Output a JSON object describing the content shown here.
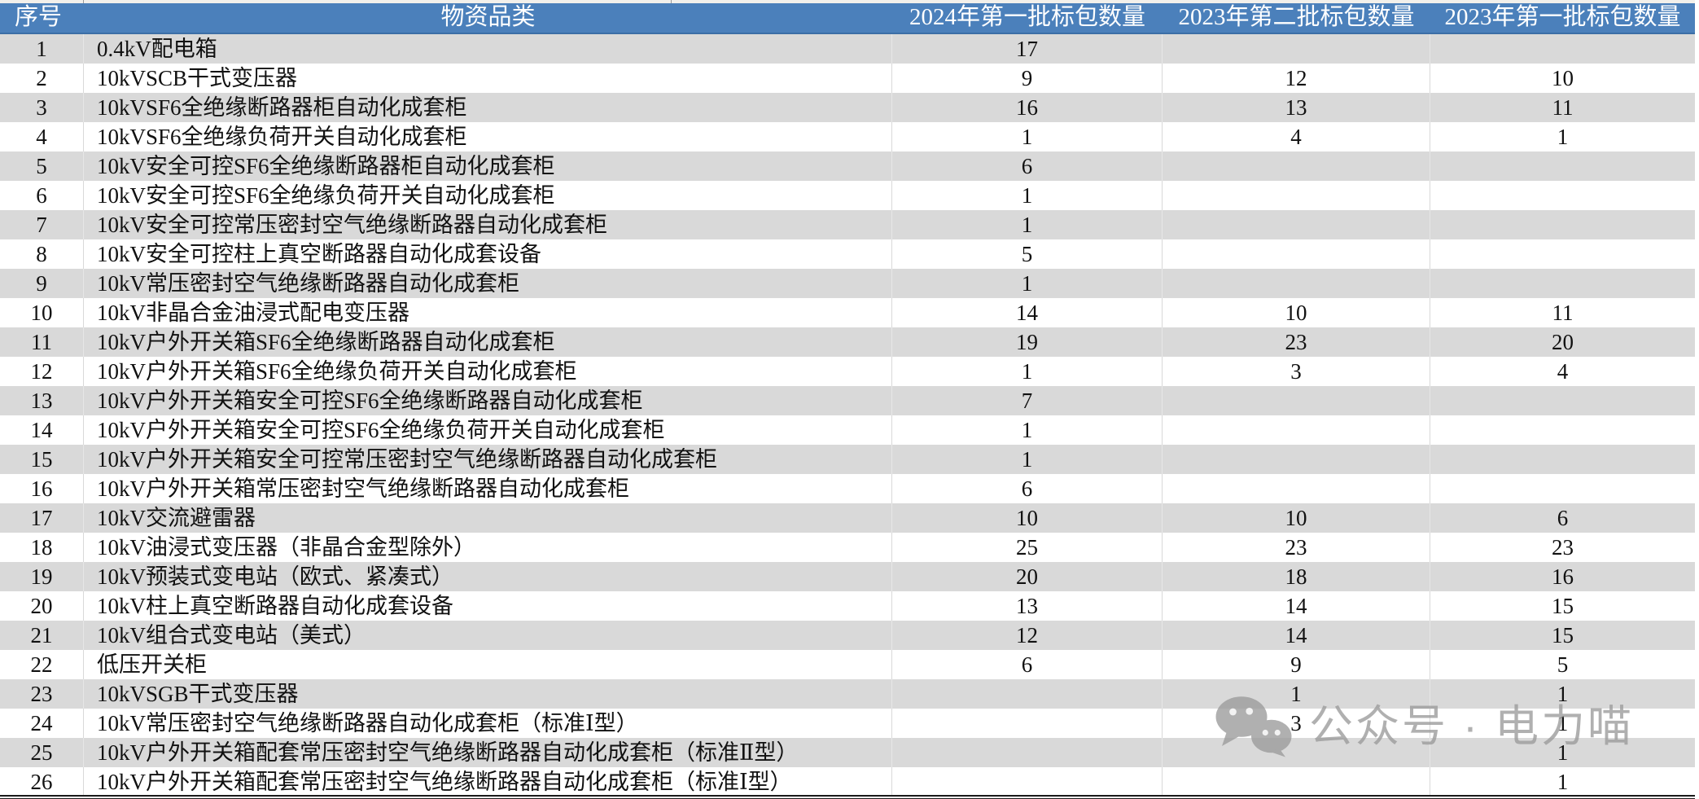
{
  "table": {
    "columns": [
      "序号",
      "物资品类",
      "2024年第一批标包数量",
      "2023年第二批标包数量",
      "2023年第一批标包数量"
    ],
    "rows": [
      [
        "1",
        "0.4kV配电箱",
        "17",
        "",
        ""
      ],
      [
        "2",
        "10kVSCB干式变压器",
        "9",
        "12",
        "10"
      ],
      [
        "3",
        "10kVSF6全绝缘断路器柜自动化成套柜",
        "16",
        "13",
        "11"
      ],
      [
        "4",
        "10kVSF6全绝缘负荷开关自动化成套柜",
        "1",
        "4",
        "1"
      ],
      [
        "5",
        "10kV安全可控SF6全绝缘断路器柜自动化成套柜",
        "6",
        "",
        ""
      ],
      [
        "6",
        "10kV安全可控SF6全绝缘负荷开关自动化成套柜",
        "1",
        "",
        ""
      ],
      [
        "7",
        "10kV安全可控常压密封空气绝缘断路器自动化成套柜",
        "1",
        "",
        ""
      ],
      [
        "8",
        "10kV安全可控柱上真空断路器自动化成套设备",
        "5",
        "",
        ""
      ],
      [
        "9",
        "10kV常压密封空气绝缘断路器自动化成套柜",
        "1",
        "",
        ""
      ],
      [
        "10",
        "10kV非晶合金油浸式配电变压器",
        "14",
        "10",
        "11"
      ],
      [
        "11",
        "10kV户外开关箱SF6全绝缘断路器自动化成套柜",
        "19",
        "23",
        "20"
      ],
      [
        "12",
        "10kV户外开关箱SF6全绝缘负荷开关自动化成套柜",
        "1",
        "3",
        "4"
      ],
      [
        "13",
        "10kV户外开关箱安全可控SF6全绝缘断路器自动化成套柜",
        "7",
        "",
        ""
      ],
      [
        "14",
        "10kV户外开关箱安全可控SF6全绝缘负荷开关自动化成套柜",
        "1",
        "",
        ""
      ],
      [
        "15",
        "10kV户外开关箱安全可控常压密封空气绝缘断路器自动化成套柜",
        "1",
        "",
        ""
      ],
      [
        "16",
        "10kV户外开关箱常压密封空气绝缘断路器自动化成套柜",
        "6",
        "",
        ""
      ],
      [
        "17",
        "10kV交流避雷器",
        "10",
        "10",
        "6"
      ],
      [
        "18",
        "10kV油浸式变压器（非晶合金型除外）",
        "25",
        "23",
        "23"
      ],
      [
        "19",
        "10kV预装式变电站（欧式、紧凑式）",
        "20",
        "18",
        "16"
      ],
      [
        "20",
        "10kV柱上真空断路器自动化成套设备",
        "13",
        "14",
        "15"
      ],
      [
        "21",
        "10kV组合式变电站（美式）",
        "12",
        "14",
        "15"
      ],
      [
        "22",
        "低压开关柜",
        "6",
        "9",
        "5"
      ],
      [
        "23",
        "10kVSGB干式变压器",
        "",
        "1",
        "1"
      ],
      [
        "24",
        "10kV常压密封空气绝缘断路器自动化成套柜（标准Ⅰ型）",
        "",
        "3",
        "1"
      ],
      [
        "25",
        "10kV户外开关箱配套常压密封空气绝缘断路器自动化成套柜（标准Ⅱ型）",
        "",
        "",
        "1"
      ],
      [
        "26",
        "10kV户外开关箱配套常压密封空气绝缘断路器自动化成套柜（标准Ⅰ型）",
        "",
        "",
        "1"
      ]
    ]
  },
  "watermark": {
    "icon": "wechat-icon",
    "text": "公众号 · 电力喵"
  },
  "colors": {
    "header_bg": "#4b80bb",
    "header_text": "#ffffff",
    "stripe_gray": "#d9d9d9",
    "row_white": "#ffffff",
    "watermark_gray": "#9b9b9b",
    "bottom_rule": "#1b1b1b"
  }
}
